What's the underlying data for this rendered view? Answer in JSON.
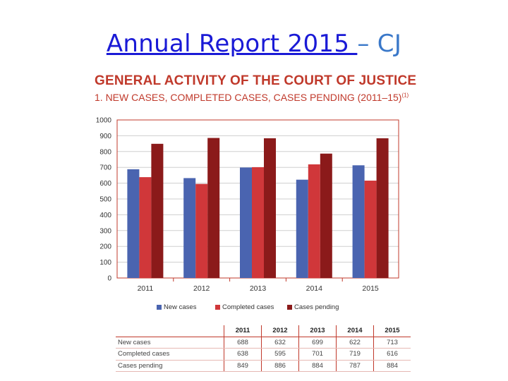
{
  "slide": {
    "title_link": "Annual Report 2015 ",
    "title_rest": "– CJ"
  },
  "figure": {
    "heading": "GENERAL ACTIVITY OF THE COURT OF JUSTICE",
    "subheading": "1. NEW CASES, COMPLETED CASES, CASES PENDING (2011–15)",
    "footnote_marker": "(1)"
  },
  "colors": {
    "new_cases": "#4a64b0",
    "completed_cases": "#d0373a",
    "cases_pending": "#8b1a1a",
    "grid": "#cfcfcf",
    "frame": "#c0392b"
  },
  "chart_data": {
    "type": "bar",
    "categories": [
      "2011",
      "2012",
      "2013",
      "2014",
      "2015"
    ],
    "series": [
      {
        "name": "New cases",
        "values": [
          688,
          632,
          699,
          622,
          713
        ]
      },
      {
        "name": "Completed cases",
        "values": [
          638,
          595,
          701,
          719,
          616
        ]
      },
      {
        "name": "Cases pending",
        "values": [
          849,
          886,
          884,
          787,
          884
        ]
      }
    ],
    "ylim": [
      0,
      1000
    ],
    "yticks": [
      "0",
      "100",
      "200",
      "300",
      "400",
      "500",
      "600",
      "700",
      "800",
      "900",
      "1000"
    ],
    "grid": true,
    "legend": "bottom"
  },
  "table": {
    "headers": [
      "2011",
      "2012",
      "2013",
      "2014",
      "2015"
    ],
    "rows": [
      {
        "label": "New cases",
        "values": [
          "688",
          "632",
          "699",
          "622",
          "713"
        ]
      },
      {
        "label": "Completed cases",
        "values": [
          "638",
          "595",
          "701",
          "719",
          "616"
        ]
      },
      {
        "label": "Cases pending",
        "values": [
          "849",
          "886",
          "884",
          "787",
          "884"
        ]
      }
    ]
  }
}
